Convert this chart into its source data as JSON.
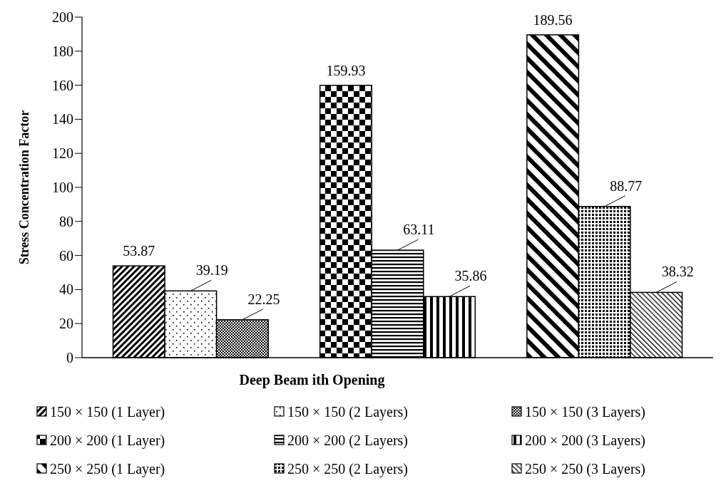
{
  "chart_data": {
    "type": "bar",
    "xlabel": "Deep Beam ith Opening",
    "ylabel": "Stress Concentration Factor",
    "categories": [
      null,
      null,
      null
    ],
    "series": [
      {
        "name": "150 × 150 (1 Layer)",
        "color": "#000000",
        "values": [
          53.87,
          null,
          null
        ]
      },
      {
        "name": "150 × 150 (2 Layers)",
        "color": "#000000",
        "values": [
          39.19,
          null,
          null
        ]
      },
      {
        "name": "150 × 150 (3 Layers)",
        "color": "#000000",
        "values": [
          22.25,
          null,
          null
        ]
      },
      {
        "name": "200 × 200 (1 Layer)",
        "color": "#000000",
        "values": [
          null,
          159.93,
          null
        ]
      },
      {
        "name": "200 × 200 (2 Layers)",
        "color": "#000000",
        "values": [
          null,
          63.11,
          null
        ]
      },
      {
        "name": "200 × 200 (3 Layers)",
        "color": "#000000",
        "values": [
          null,
          35.86,
          null
        ]
      },
      {
        "name": "250 × 250 (1 Layer)",
        "color": "#000000",
        "values": [
          null,
          null,
          189.56
        ]
      },
      {
        "name": "250 × 250 (2 Layers)",
        "color": "#000000",
        "values": [
          null,
          null,
          88.77
        ]
      },
      {
        "name": "250 × 250 (3 Layers)",
        "color": "#000000",
        "values": [
          null,
          null,
          38.32
        ]
      }
    ],
    "ylim": [
      0,
      200
    ],
    "yticks": [
      0,
      20,
      40,
      60,
      80,
      100,
      120,
      140,
      160,
      180,
      200
    ],
    "grid": false,
    "legend": "bottom",
    "data_labels": true
  }
}
